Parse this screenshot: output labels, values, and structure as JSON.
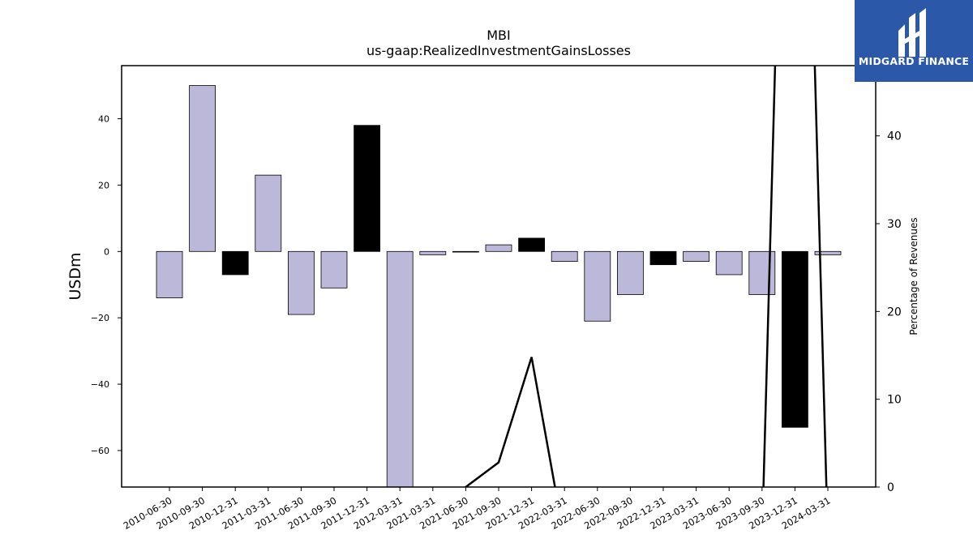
{
  "chart_data": {
    "type": "bar",
    "title": "MBI",
    "subtitle": "us-gaap:RealizedInvestmentGainsLosses",
    "ylabel": "USDm",
    "ylabel_right": "Percentage of Revenues",
    "categories": [
      "2010-06-30",
      "2010-09-30",
      "2010-12-31",
      "2011-03-31",
      "2011-06-30",
      "2011-09-30",
      "2011-12-31",
      "2012-03-31",
      "2021-03-31",
      "2021-06-30",
      "2021-09-30",
      "2021-12-31",
      "2022-03-31",
      "2022-06-30",
      "2022-09-30",
      "2022-12-31",
      "2023-03-31",
      "2023-06-30",
      "2023-09-30",
      "2023-12-31",
      "2024-03-31"
    ],
    "values": [
      -14,
      50,
      -7,
      23,
      -19,
      -11,
      38,
      -72,
      -1,
      0,
      2,
      4,
      -3,
      -21,
      -13,
      -4,
      -3,
      -7,
      -13,
      -53,
      -1
    ],
    "bar_colors": [
      "#bcb8d9",
      "#bcb8d9",
      "#000000",
      "#bcb8d9",
      "#bcb8d9",
      "#bcb8d9",
      "#000000",
      "#bcb8d9",
      "#bcb8d9",
      "#bcb8d9",
      "#bcb8d9",
      "#000000",
      "#bcb8d9",
      "#bcb8d9",
      "#bcb8d9",
      "#000000",
      "#bcb8d9",
      "#bcb8d9",
      "#bcb8d9",
      "#000000",
      "#bcb8d9"
    ],
    "ylim": [
      -71,
      56
    ],
    "yticks": [
      -60,
      -40,
      -20,
      0,
      20,
      40
    ],
    "ytick_labels": [
      "−60",
      "−40",
      "−20",
      "0",
      "20",
      "40"
    ],
    "line_series": {
      "values": [
        null,
        null,
        null,
        null,
        null,
        null,
        null,
        null,
        -6,
        0,
        2.8,
        14.8,
        -6,
        null,
        null,
        null,
        null,
        null,
        -6,
        130,
        -6
      ],
      "color": "#000000"
    },
    "y2lim": [
      0,
      48
    ],
    "y2ticks": [
      0,
      10,
      20,
      30,
      40
    ],
    "grid": false
  },
  "logo": {
    "text": "MIDGARD FINANCE",
    "icon": "midgard-logo-icon",
    "color": "#2b58a8"
  }
}
